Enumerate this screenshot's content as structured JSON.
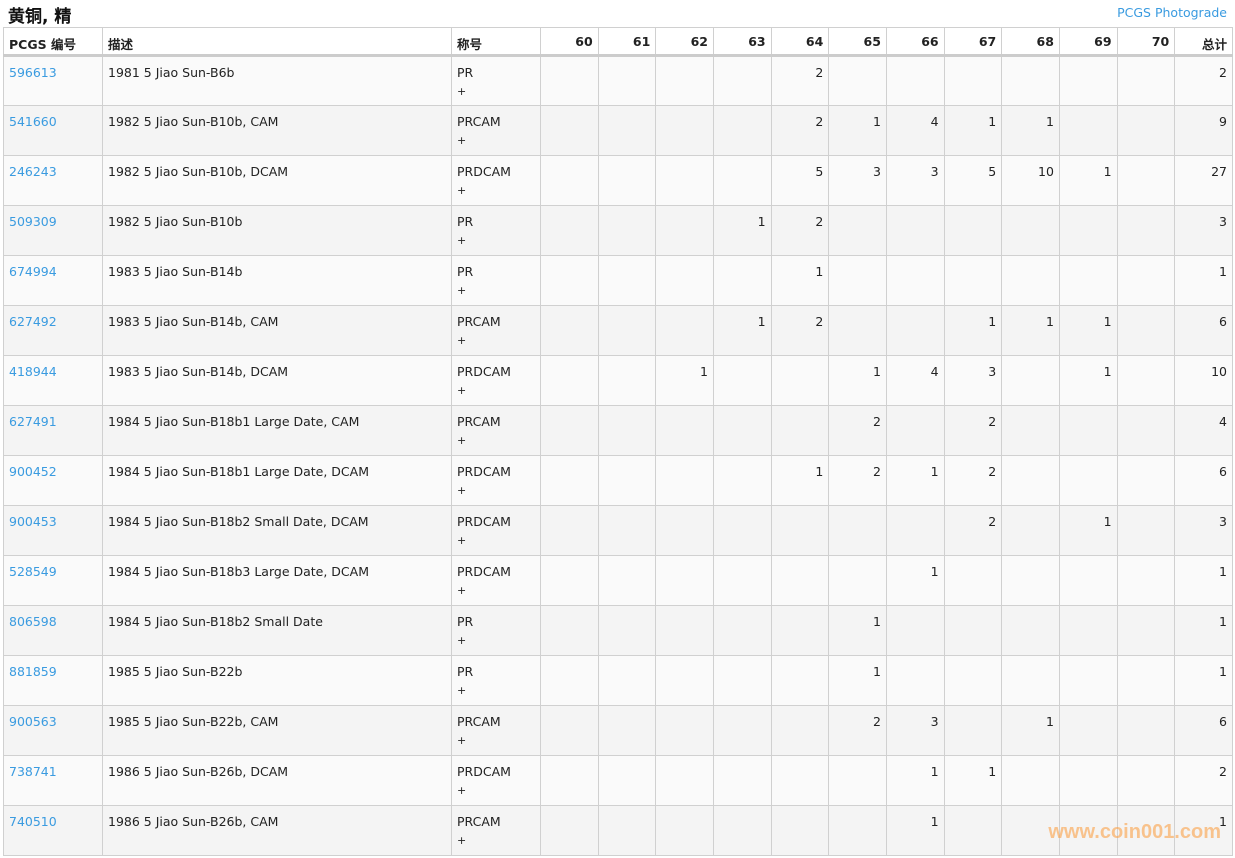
{
  "header": {
    "title": "黄铜, 精",
    "photograde_link": "PCGS Photograde"
  },
  "columns": {
    "pcgs": "PCGS 编号",
    "desc": "描述",
    "designation": "称号",
    "grades": [
      "60",
      "61",
      "62",
      "63",
      "64",
      "65",
      "66",
      "67",
      "68",
      "69",
      "70"
    ],
    "total": "总计"
  },
  "rows": [
    {
      "pcgs": "596613",
      "desc": "1981 5 Jiao Sun-B6b",
      "designation": "PR",
      "plus": "+",
      "grades": [
        "",
        "",
        "",
        "",
        "2",
        "",
        "",
        "",
        "",
        "",
        ""
      ],
      "total": "2"
    },
    {
      "pcgs": "541660",
      "desc": "1982 5 Jiao Sun-B10b, CAM",
      "designation": "PRCAM",
      "plus": "+",
      "grades": [
        "",
        "",
        "",
        "",
        "2",
        "1",
        "4",
        "1",
        "1",
        "",
        ""
      ],
      "total": "9"
    },
    {
      "pcgs": "246243",
      "desc": "1982 5 Jiao Sun-B10b, DCAM",
      "designation": "PRDCAM",
      "plus": "+",
      "grades": [
        "",
        "",
        "",
        "",
        "5",
        "3",
        "3",
        "5",
        "10",
        "1",
        ""
      ],
      "total": "27"
    },
    {
      "pcgs": "509309",
      "desc": "1982 5 Jiao Sun-B10b",
      "designation": "PR",
      "plus": "+",
      "grades": [
        "",
        "",
        "",
        "1",
        "2",
        "",
        "",
        "",
        "",
        "",
        ""
      ],
      "total": "3"
    },
    {
      "pcgs": "674994",
      "desc": "1983 5 Jiao Sun-B14b",
      "designation": "PR",
      "plus": "+",
      "grades": [
        "",
        "",
        "",
        "",
        "1",
        "",
        "",
        "",
        "",
        "",
        ""
      ],
      "total": "1"
    },
    {
      "pcgs": "627492",
      "desc": "1983 5 Jiao Sun-B14b, CAM",
      "designation": "PRCAM",
      "plus": "+",
      "grades": [
        "",
        "",
        "",
        "1",
        "2",
        "",
        "",
        "1",
        "1",
        "1",
        ""
      ],
      "total": "6"
    },
    {
      "pcgs": "418944",
      "desc": "1983 5 Jiao Sun-B14b, DCAM",
      "designation": "PRDCAM",
      "plus": "+",
      "grades": [
        "",
        "",
        "1",
        "",
        "",
        "1",
        "4",
        "3",
        "",
        "1",
        ""
      ],
      "total": "10"
    },
    {
      "pcgs": "627491",
      "desc": "1984 5 Jiao Sun-B18b1 Large Date, CAM",
      "designation": "PRCAM",
      "plus": "+",
      "grades": [
        "",
        "",
        "",
        "",
        "",
        "2",
        "",
        "2",
        "",
        "",
        ""
      ],
      "total": "4"
    },
    {
      "pcgs": "900452",
      "desc": "1984 5 Jiao Sun-B18b1 Large Date, DCAM",
      "designation": "PRDCAM",
      "plus": "+",
      "grades": [
        "",
        "",
        "",
        "",
        "1",
        "2",
        "1",
        "2",
        "",
        "",
        ""
      ],
      "total": "6"
    },
    {
      "pcgs": "900453",
      "desc": "1984 5 Jiao Sun-B18b2 Small Date, DCAM",
      "designation": "PRDCAM",
      "plus": "+",
      "grades": [
        "",
        "",
        "",
        "",
        "",
        "",
        "",
        "2",
        "",
        "1",
        ""
      ],
      "total": "3"
    },
    {
      "pcgs": "528549",
      "desc": "1984 5 Jiao Sun-B18b3 Large Date, DCAM",
      "designation": "PRDCAM",
      "plus": "+",
      "grades": [
        "",
        "",
        "",
        "",
        "",
        "",
        "1",
        "",
        "",
        "",
        ""
      ],
      "total": "1"
    },
    {
      "pcgs": "806598",
      "desc": "1984 5 Jiao Sun-B18b2 Small Date",
      "designation": "PR",
      "plus": "+",
      "grades": [
        "",
        "",
        "",
        "",
        "",
        "1",
        "",
        "",
        "",
        "",
        ""
      ],
      "total": "1"
    },
    {
      "pcgs": "881859",
      "desc": "1985 5 Jiao Sun-B22b",
      "designation": "PR",
      "plus": "+",
      "grades": [
        "",
        "",
        "",
        "",
        "",
        "1",
        "",
        "",
        "",
        "",
        ""
      ],
      "total": "1"
    },
    {
      "pcgs": "900563",
      "desc": "1985 5 Jiao Sun-B22b, CAM",
      "designation": "PRCAM",
      "plus": "+",
      "grades": [
        "",
        "",
        "",
        "",
        "",
        "2",
        "3",
        "",
        "1",
        "",
        ""
      ],
      "total": "6"
    },
    {
      "pcgs": "738741",
      "desc": "1986 5 Jiao Sun-B26b, DCAM",
      "designation": "PRDCAM",
      "plus": "+",
      "grades": [
        "",
        "",
        "",
        "",
        "",
        "",
        "1",
        "1",
        "",
        "",
        ""
      ],
      "total": "2"
    },
    {
      "pcgs": "740510",
      "desc": "1986 5 Jiao Sun-B26b, CAM",
      "designation": "PRCAM",
      "plus": "+",
      "grades": [
        "",
        "",
        "",
        "",
        "",
        "",
        "1",
        "",
        "",
        "",
        ""
      ],
      "total": "1"
    }
  ],
  "watermark": "www.coin001.com",
  "colors": {
    "link": "#3a9be0",
    "watermark": "#faa046"
  }
}
